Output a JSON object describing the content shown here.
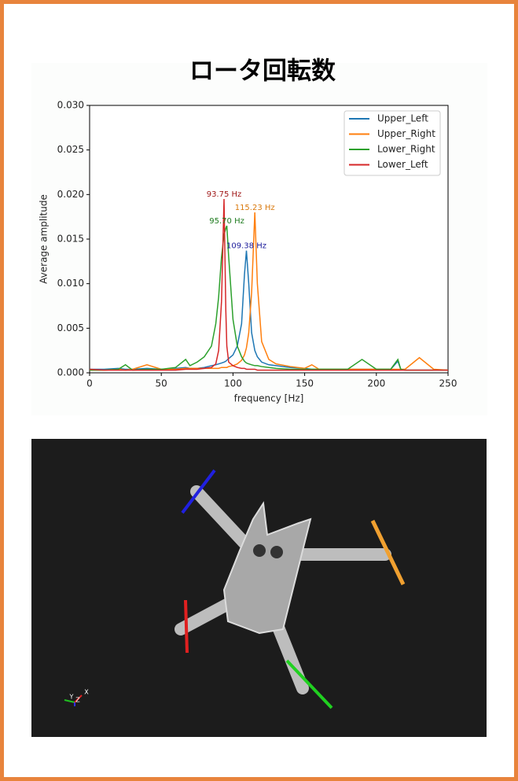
{
  "chart_data": {
    "type": "line",
    "title": "ロータ回転数",
    "xlabel": "frequency [Hz]",
    "ylabel": "Average amplitude",
    "xlim": [
      0,
      250
    ],
    "ylim": [
      0,
      0.03
    ],
    "xticks": [
      0,
      50,
      100,
      150,
      200,
      250
    ],
    "yticks": [
      {
        "value": 0,
        "label": "0.000"
      },
      {
        "value": 0.005,
        "label": "0.005"
      },
      {
        "value": 0.01,
        "label": "0.010"
      },
      {
        "value": 0.015,
        "label": "0.015"
      },
      {
        "value": 0.02,
        "label": "0.020"
      },
      {
        "value": 0.025,
        "label": "0.025"
      },
      {
        "value": 0.03,
        "label": "0.030"
      }
    ],
    "legend": "upper right",
    "x": [
      0,
      10,
      20,
      25,
      30,
      40,
      50,
      60,
      67,
      70,
      75,
      80,
      85,
      88,
      90,
      92,
      93.75,
      95,
      95.7,
      97,
      100,
      103,
      106,
      108,
      109.38,
      111,
      113,
      115.23,
      117,
      120,
      125,
      130,
      140,
      150,
      155,
      160,
      170,
      180,
      190,
      200,
      210,
      215,
      217,
      220,
      230,
      240,
      250
    ],
    "series": [
      {
        "name": "Upper_Left",
        "color": "#1f77b4",
        "values": [
          0.0004,
          0.0004,
          0.0005,
          0.0004,
          0.0004,
          0.0005,
          0.0004,
          0.0005,
          0.0006,
          0.0005,
          0.0005,
          0.0006,
          0.0008,
          0.0009,
          0.001,
          0.0011,
          0.0012,
          0.0013,
          0.0014,
          0.0016,
          0.002,
          0.003,
          0.0055,
          0.011,
          0.0137,
          0.01,
          0.0045,
          0.0025,
          0.0018,
          0.0012,
          0.0009,
          0.0008,
          0.0006,
          0.0005,
          0.0004,
          0.0004,
          0.0004,
          0.0004,
          0.0004,
          0.0004,
          0.0004,
          0.0013,
          0.0004,
          0.0003,
          0.0003,
          0.0003,
          0.0003
        ]
      },
      {
        "name": "Upper_Right",
        "color": "#ff7f0e",
        "values": [
          0.0003,
          0.0003,
          0.0004,
          0.0003,
          0.0004,
          0.0009,
          0.0004,
          0.0004,
          0.0005,
          0.0005,
          0.0005,
          0.0005,
          0.0005,
          0.0005,
          0.0005,
          0.0006,
          0.0006,
          0.0006,
          0.0006,
          0.0007,
          0.0008,
          0.001,
          0.0014,
          0.002,
          0.0028,
          0.0045,
          0.009,
          0.018,
          0.01,
          0.0035,
          0.0015,
          0.001,
          0.0007,
          0.0005,
          0.0009,
          0.0004,
          0.0004,
          0.0004,
          0.0004,
          0.0004,
          0.0004,
          0.0004,
          0.0004,
          0.0004,
          0.0017,
          0.0004,
          0.0003
        ]
      },
      {
        "name": "Lower_Right",
        "color": "#2ca02c",
        "values": [
          0.0003,
          0.0003,
          0.0004,
          0.0009,
          0.0003,
          0.0004,
          0.0004,
          0.0006,
          0.0015,
          0.0008,
          0.0012,
          0.0018,
          0.003,
          0.0055,
          0.0085,
          0.013,
          0.0155,
          0.0162,
          0.0165,
          0.013,
          0.006,
          0.003,
          0.0018,
          0.0013,
          0.0011,
          0.001,
          0.0009,
          0.0008,
          0.0008,
          0.0007,
          0.0006,
          0.0005,
          0.0004,
          0.0004,
          0.0004,
          0.0004,
          0.0004,
          0.0004,
          0.0015,
          0.0004,
          0.0004,
          0.0015,
          0.0004,
          0.0003,
          0.0003,
          0.0003,
          0.0003
        ]
      },
      {
        "name": "Lower_Left",
        "color": "#d62728",
        "values": [
          0.0004,
          0.0003,
          0.0003,
          0.0003,
          0.0003,
          0.0003,
          0.0003,
          0.0003,
          0.0004,
          0.0004,
          0.0004,
          0.0005,
          0.0006,
          0.001,
          0.0025,
          0.008,
          0.0195,
          0.007,
          0.003,
          0.0012,
          0.0008,
          0.0006,
          0.0005,
          0.0005,
          0.0004,
          0.0004,
          0.0004,
          0.0004,
          0.0003,
          0.0003,
          0.0003,
          0.0003,
          0.0003,
          0.0003,
          0.0003,
          0.0003,
          0.0003,
          0.0003,
          0.0003,
          0.0003,
          0.0003,
          0.0003,
          0.0003,
          0.0003,
          0.0003,
          0.0003,
          0.0003
        ]
      }
    ],
    "annotations": [
      {
        "text": "93.75 Hz",
        "x": 93.75,
        "y": 0.0195,
        "color": "#a01818"
      },
      {
        "text": "115.23 Hz",
        "x": 115.23,
        "y": 0.018,
        "color": "#d9780c"
      },
      {
        "text": "95.70 Hz",
        "x": 95.7,
        "y": 0.0165,
        "color": "#1d7a1d"
      },
      {
        "text": "109.38 Hz",
        "x": 109.38,
        "y": 0.0137,
        "color": "#1a1a9a"
      }
    ]
  },
  "viewer": {
    "axis_labels": [
      "Y",
      "Z",
      "X"
    ]
  }
}
